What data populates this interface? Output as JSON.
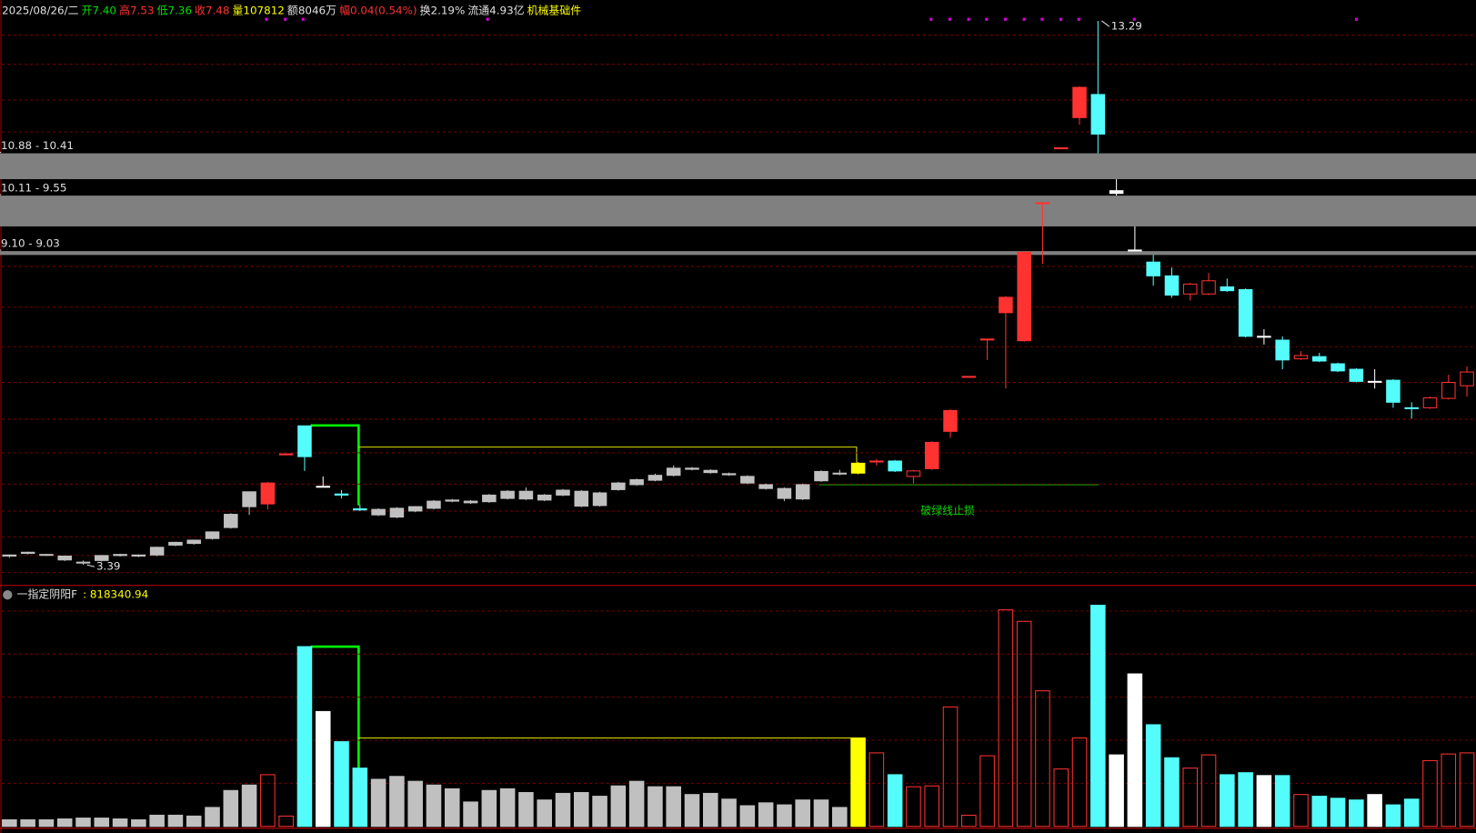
{
  "chart_data": {
    "type": "candlestick",
    "header": [
      {
        "text": "2025/08/26/二",
        "color": "#e0e0e0"
      },
      {
        "text": "开7.40",
        "color": "#00e000"
      },
      {
        "text": "高7.53",
        "color": "#ff3232"
      },
      {
        "text": "低7.36",
        "color": "#00e000"
      },
      {
        "text": "收7.48",
        "color": "#ff3232"
      },
      {
        "text": "量107812",
        "color": "#ffff00"
      },
      {
        "text": "额8046万",
        "color": "#e0e0e0"
      },
      {
        "text": "幅0.04(0.54%)",
        "color": "#ff3232"
      },
      {
        "text": "换2.19%",
        "color": "#e0e0e0"
      },
      {
        "text": "流通4.93亿",
        "color": "#e0e0e0"
      },
      {
        "text": "机械基础件",
        "color": "#ffff00"
      }
    ],
    "open": [
      3.55,
      3.6,
      3.57,
      3.55,
      3.43,
      3.47,
      3.56,
      3.57,
      3.57,
      3.75,
      3.78,
      3.87,
      4.07,
      4.45,
      4.5,
      5.41,
      5.92,
      4.82,
      4.68,
      4.41,
      4.4,
      4.42,
      4.37,
      4.42,
      4.55,
      4.52,
      4.54,
      4.6,
      4.73,
      4.57,
      4.66,
      4.73,
      4.47,
      4.76,
      4.85,
      4.93,
      5.02,
      5.13,
      5.11,
      5.05,
      5.0,
      4.85,
      4.78,
      4.59,
      4.92,
      5.05,
      5.06,
      5.27,
      5.28,
      5.0,
      5.14,
      5.82,
      6.82,
      7.5,
      7.98,
      7.47,
      9.98,
      10.98,
      11.53,
      11.95,
      10.2,
      9.12,
      8.9,
      8.65,
      8.32,
      8.32,
      8.45,
      8.4,
      7.55,
      7.48,
      7.14,
      7.18,
      7.05,
      6.95,
      6.73,
      6.75,
      6.25,
      6.25,
      6.42,
      6.65
    ],
    "high": [
      3.58,
      3.63,
      3.59,
      3.56,
      3.47,
      3.57,
      3.59,
      3.58,
      3.72,
      3.81,
      3.85,
      4.0,
      4.33,
      4.72,
      4.9,
      5.41,
      5.92,
      5.0,
      4.75,
      4.48,
      4.42,
      4.44,
      4.46,
      4.57,
      4.59,
      4.57,
      4.68,
      4.75,
      4.8,
      4.68,
      4.77,
      4.75,
      4.72,
      4.9,
      4.96,
      5.05,
      5.2,
      5.17,
      5.13,
      5.07,
      5.02,
      4.87,
      4.8,
      4.87,
      5.11,
      5.12,
      5.26,
      5.32,
      5.3,
      5.12,
      5.64,
      6.22,
      6.82,
      7.5,
      8.28,
      9.1,
      9.98,
      10.98,
      12.1,
      13.29,
      10.41,
      9.55,
      9.03,
      8.8,
      8.52,
      8.7,
      8.6,
      8.42,
      7.68,
      7.55,
      7.28,
      7.25,
      7.07,
      6.97,
      6.95,
      6.77,
      6.35,
      6.45,
      6.85,
      7.0
    ],
    "low": [
      3.52,
      3.58,
      3.55,
      3.46,
      3.39,
      3.45,
      3.54,
      3.53,
      3.55,
      3.73,
      3.76,
      3.85,
      4.05,
      4.3,
      4.4,
      5.41,
      5.1,
      4.82,
      4.6,
      4.37,
      4.28,
      4.24,
      4.35,
      4.4,
      4.53,
      4.5,
      4.52,
      4.58,
      4.57,
      4.55,
      4.64,
      4.44,
      4.45,
      4.74,
      4.83,
      4.91,
      5.0,
      5.11,
      5.05,
      5.01,
      4.86,
      4.76,
      4.55,
      4.57,
      4.9,
      5.02,
      5.04,
      5.2,
      5.08,
      4.87,
      5.12,
      5.7,
      6.82,
      7.12,
      6.6,
      7.45,
      8.87,
      10.98,
      11.4,
      10.88,
      10.11,
      9.1,
      8.47,
      8.25,
      8.2,
      8.3,
      8.36,
      7.53,
      7.4,
      6.95,
      7.12,
      7.08,
      6.9,
      6.71,
      6.6,
      6.25,
      6.05,
      6.23,
      6.4,
      6.45
    ],
    "close": [
      3.57,
      3.62,
      3.58,
      3.48,
      3.44,
      3.56,
      3.58,
      3.55,
      3.71,
      3.8,
      3.84,
      3.99,
      4.31,
      4.72,
      4.88,
      5.41,
      5.36,
      4.82,
      4.66,
      4.39,
      4.3,
      4.26,
      4.45,
      4.55,
      4.57,
      4.55,
      4.66,
      4.73,
      4.59,
      4.66,
      4.75,
      4.46,
      4.7,
      4.88,
      4.94,
      5.02,
      5.15,
      5.15,
      5.07,
      5.03,
      4.88,
      4.78,
      4.6,
      4.85,
      5.09,
      5.06,
      5.24,
      5.28,
      5.1,
      5.1,
      5.62,
      6.2,
      6.82,
      7.5,
      8.26,
      9.08,
      9.98,
      10.98,
      12.08,
      11.23,
      10.15,
      9.12,
      8.65,
      8.3,
      8.5,
      8.56,
      8.38,
      7.55,
      7.55,
      7.12,
      7.2,
      7.1,
      6.92,
      6.73,
      6.73,
      6.35,
      6.25,
      6.43,
      6.71,
      6.9
    ],
    "volume": [
      23000,
      23000,
      23000,
      26000,
      29000,
      29000,
      26000,
      23000,
      39000,
      39000,
      36000,
      66000,
      125000,
      144000,
      180000,
      36000,
      626000,
      400000,
      295000,
      203000,
      164000,
      174000,
      157000,
      144000,
      131000,
      85000,
      125000,
      131000,
      118000,
      92000,
      115000,
      118000,
      105000,
      141000,
      157000,
      138000,
      138000,
      111000,
      115000,
      95000,
      72000,
      82000,
      75000,
      92000,
      92000,
      66000,
      308000,
      256000,
      180000,
      138000,
      141000,
      416000,
      39000,
      246000,
      754000,
      714000,
      472000,
      200000,
      308000,
      770000,
      249000,
      531000,
      354000,
      239000,
      203000,
      249000,
      180000,
      187000,
      177000,
      177000,
      111000,
      105000,
      98000,
      92000,
      111000,
      75000,
      95000,
      229000,
      252000,
      256000
    ],
    "colors": [
      "#c0c0c0",
      "#c0c0c0",
      "#c0c0c0",
      "#c0c0c0",
      "#c0c0c0",
      "#c0c0c0",
      "#c0c0c0",
      "#c0c0c0",
      "#c0c0c0",
      "#c0c0c0",
      "#c0c0c0",
      "#c0c0c0",
      "#c0c0c0",
      "#c0c0c0",
      "#ff3232",
      "#ff3232",
      "#54fcfc",
      "#ffffff",
      "#54fcfc",
      "#54fcfc",
      "#c0c0c0",
      "#c0c0c0",
      "#c0c0c0",
      "#c0c0c0",
      "#c0c0c0",
      "#c0c0c0",
      "#c0c0c0",
      "#c0c0c0",
      "#c0c0c0",
      "#c0c0c0",
      "#c0c0c0",
      "#c0c0c0",
      "#c0c0c0",
      "#c0c0c0",
      "#c0c0c0",
      "#c0c0c0",
      "#c0c0c0",
      "#c0c0c0",
      "#c0c0c0",
      "#c0c0c0",
      "#c0c0c0",
      "#c0c0c0",
      "#c0c0c0",
      "#c0c0c0",
      "#c0c0c0",
      "#c0c0c0",
      "#ffff00",
      "#ff3232",
      "#54fcfc",
      "#ff3232",
      "#ff3232",
      "#ff3232",
      "#ff3232",
      "#ff3232",
      "#ff3232",
      "#ff3232",
      "#ff3232",
      "#ff3232",
      "#ff3232",
      "#54fcfc",
      "#ffffff",
      "#ffffff",
      "#54fcfc",
      "#54fcfc",
      "#ff3232",
      "#ff3232",
      "#54fcfc",
      "#54fcfc",
      "#ffffff",
      "#54fcfc",
      "#ff3232",
      "#54fcfc",
      "#54fcfc",
      "#54fcfc",
      "#ffffff",
      "#54fcfc",
      "#54fcfc",
      "#ff3232",
      "#ff3232",
      "#ff3232"
    ],
    "hollow": [
      false,
      false,
      false,
      false,
      false,
      false,
      false,
      false,
      false,
      false,
      false,
      false,
      false,
      false,
      false,
      false,
      false,
      false,
      false,
      false,
      false,
      false,
      false,
      false,
      false,
      false,
      false,
      false,
      false,
      false,
      false,
      false,
      false,
      false,
      false,
      false,
      false,
      false,
      false,
      false,
      false,
      false,
      false,
      false,
      false,
      false,
      false,
      true,
      false,
      true,
      false,
      false,
      false,
      true,
      false,
      false,
      false,
      false,
      false,
      false,
      false,
      false,
      false,
      false,
      true,
      true,
      false,
      false,
      false,
      false,
      true,
      false,
      false,
      false,
      false,
      false,
      false,
      true,
      true,
      true
    ],
    "volume_outline_color": "#ff3232",
    "ylim": [
      3.05,
      13.67
    ],
    "grid_levels": [
      13.03,
      12.5,
      11.85,
      11.27,
      10.72,
      9.78,
      8.82,
      8.08,
      7.36,
      6.71,
      6.04,
      5.43,
      4.86,
      4.37,
      3.9,
      3.56,
      3.25
    ],
    "volume_ylim": [
      0,
      780000
    ],
    "volume_grid_levels": [
      150000,
      300000,
      450000,
      600000,
      750000
    ],
    "gaps": [
      {
        "label": "10.88 - 10.41",
        "high": 10.88,
        "low": 10.41
      },
      {
        "label": "10.11 - 9.55",
        "high": 10.11,
        "low": 9.55
      },
      {
        "label": "9.10 - 9.03",
        "high": 9.1,
        "low": 9.03
      }
    ],
    "annotations": [
      {
        "label": "13.29",
        "value": 13.29
      },
      {
        "label": "3.39",
        "value": 3.39
      }
    ],
    "note": "破绿线止损",
    "indicator": {
      "name": "一指定阴阳F",
      "value": 818340.94,
      "value_label": ": 818340.94"
    }
  }
}
